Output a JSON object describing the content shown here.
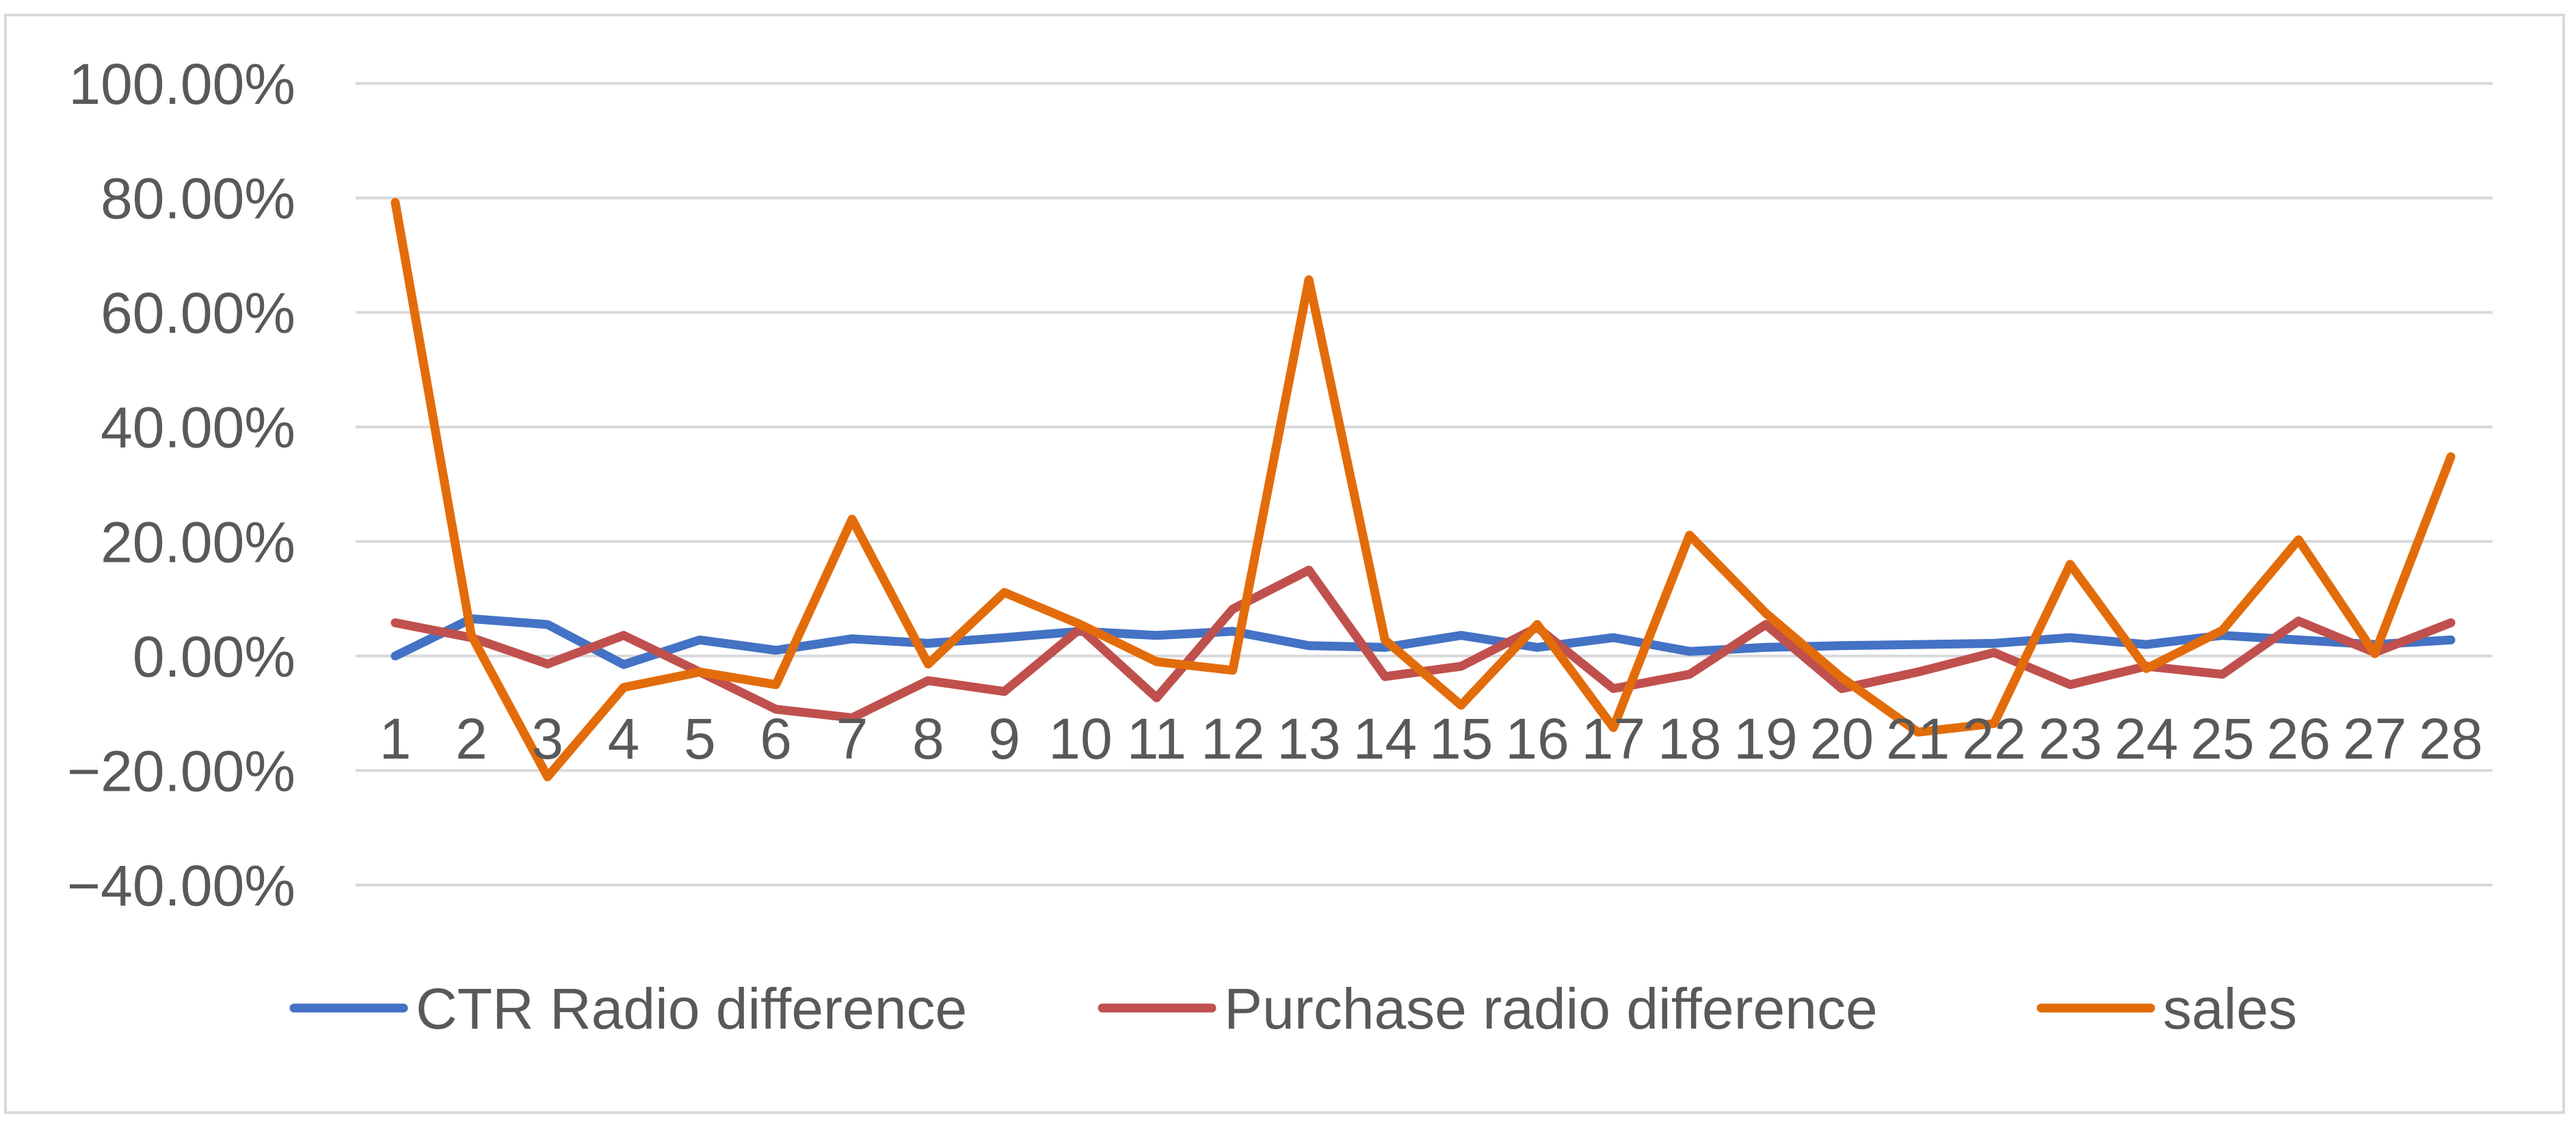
{
  "chart_data": {
    "type": "line",
    "title": "",
    "xlabel": "",
    "ylabel": "",
    "ylim": [
      -40,
      100
    ],
    "yticks": [
      100,
      80,
      60,
      40,
      20,
      0,
      -20,
      -40
    ],
    "ytick_labels": [
      "100.00%",
      "80.00%",
      "60.00%",
      "40.00%",
      "20.00%",
      "0.00%",
      "−20.00%",
      "−40.00%"
    ],
    "x": [
      "1",
      "2",
      "3",
      "4",
      "5",
      "6",
      "7",
      "8",
      "9",
      "10",
      "11",
      "12",
      "13",
      "14",
      "15",
      "16",
      "17",
      "18",
      "19",
      "20",
      "21",
      "22",
      "23",
      "24",
      "25",
      "26",
      "27",
      "28"
    ],
    "grid": true,
    "legend_position": "bottom",
    "series": [
      {
        "name": "CTR Radio difference",
        "color": "#4472C4",
        "values": [
          0.0,
          6.5,
          5.5,
          -1.5,
          2.8,
          1.0,
          3.0,
          2.2,
          3.2,
          4.3,
          3.6,
          4.3,
          1.8,
          1.5,
          3.6,
          1.5,
          3.2,
          0.8,
          1.5,
          1.8,
          2.0,
          2.2,
          3.2,
          2.0,
          3.6,
          2.8,
          2.0,
          2.8
        ]
      },
      {
        "name": "Purchase radio difference",
        "color": "#C0504D",
        "values": [
          5.8,
          3.2,
          -1.4,
          3.6,
          -2.8,
          -9.3,
          -10.8,
          -4.3,
          -6.2,
          4.8,
          -7.3,
          8.2,
          15.0,
          -3.6,
          -1.8,
          5.0,
          -5.7,
          -3.2,
          5.5,
          -5.7,
          -2.8,
          0.6,
          -5.0,
          -1.8,
          -3.2,
          6.1,
          0.6,
          5.8
        ]
      },
      {
        "name": "sales",
        "color": "#E36C0A",
        "values": [
          79.2,
          3.6,
          -21.1,
          -5.5,
          -2.8,
          -5.0,
          23.9,
          -1.4,
          11.1,
          5.5,
          -1.0,
          -2.5,
          65.7,
          2.8,
          -8.6,
          5.5,
          -12.5,
          21.1,
          7.5,
          -3.8,
          -13.3,
          -11.8,
          16.0,
          -2.2,
          4.5,
          20.3,
          0.4,
          34.8
        ]
      }
    ]
  }
}
